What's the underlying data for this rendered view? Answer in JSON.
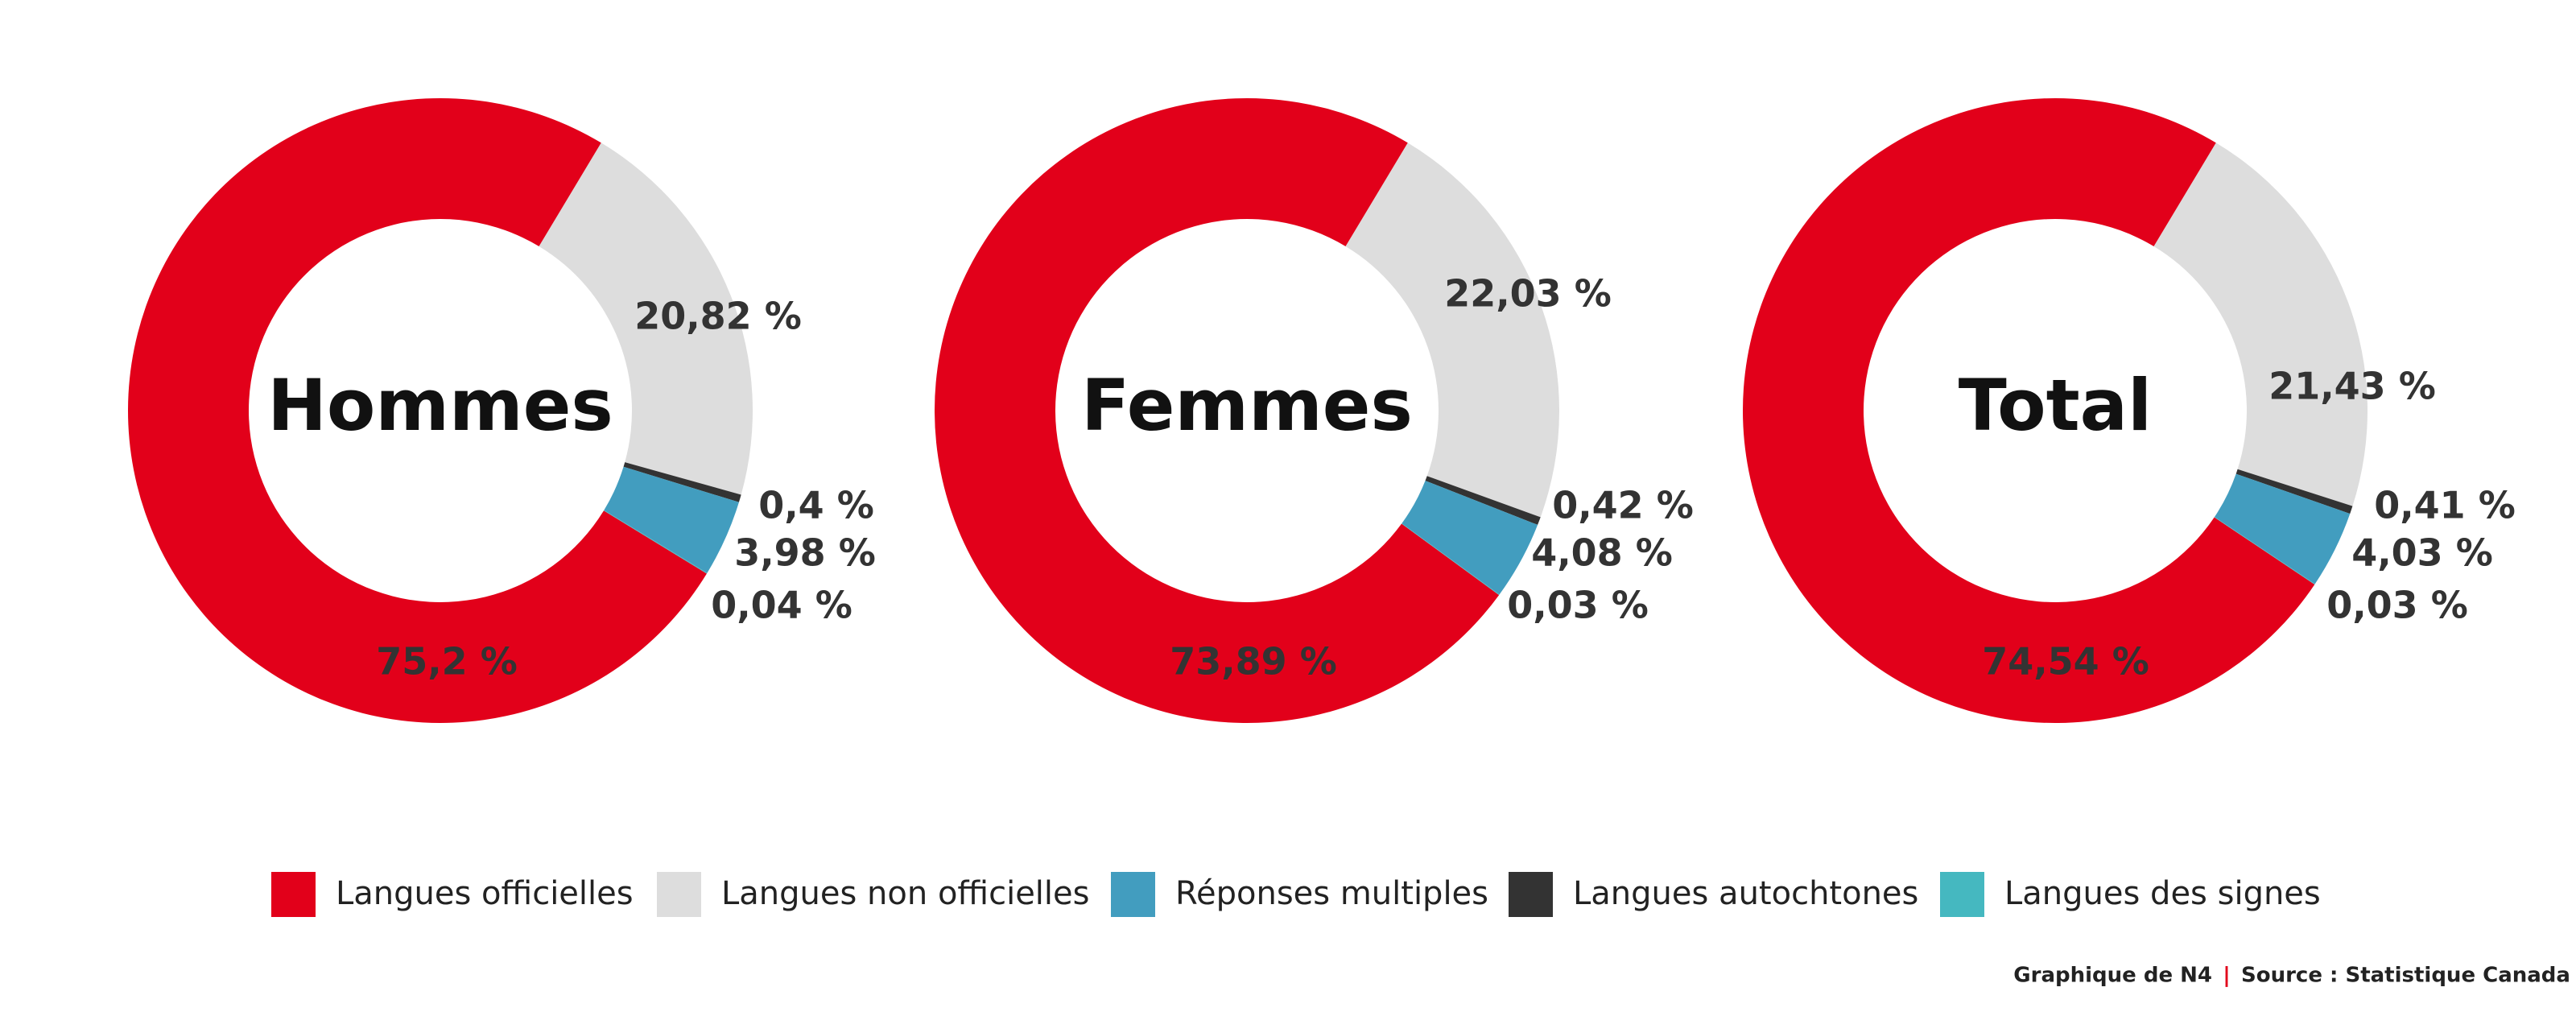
{
  "chart_data": [
    {
      "type": "pie",
      "title": "Hommes",
      "values": [
        75.2,
        20.82,
        3.98,
        0.4,
        0.04
      ],
      "value_labels": [
        "75,2 %",
        "20,82 %",
        "3,98 %",
        "0,4 %",
        "0,04 %"
      ]
    },
    {
      "type": "pie",
      "title": "Femmes",
      "values": [
        73.89,
        22.03,
        4.08,
        0.42,
        0.03
      ],
      "value_labels": [
        "73,89 %",
        "22,03 %",
        "4,08 %",
        "0,42 %",
        "0,03 %"
      ]
    },
    {
      "type": "pie",
      "title": "Total",
      "values": [
        74.54,
        21.43,
        4.03,
        0.41,
        0.03
      ],
      "value_labels": [
        "74,54 %",
        "21,43 %",
        "4,03 %",
        "0,41 %",
        "0,03 %"
      ]
    }
  ],
  "legend": {
    "labels": [
      "Langues officielles",
      "Langues non officielles",
      "Réponses multiples",
      "Langues autochtones",
      "Langues des signes"
    ],
    "colors": [
      "#e2001a",
      "#dddddd",
      "#429dbf",
      "#333333",
      "#45b8c0"
    ]
  },
  "credit": {
    "author": "Graphique de N4",
    "separator": "|",
    "source": "Source : Statistique Canada"
  }
}
